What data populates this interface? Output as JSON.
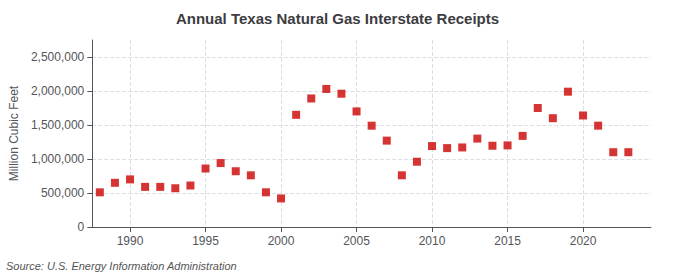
{
  "chart_data": {
    "type": "scatter",
    "title": "Annual Texas Natural Gas Interstate Receipts",
    "ylabel": "Million Cubic Feet",
    "annotations": [
      "Source: U.S. Energy Information Administration"
    ],
    "x": [
      1988,
      1989,
      1990,
      1991,
      1992,
      1993,
      1994,
      1995,
      1996,
      1997,
      1998,
      1999,
      2000,
      2001,
      2002,
      2003,
      2004,
      2005,
      2006,
      2007,
      2008,
      2009,
      2010,
      2011,
      2012,
      2013,
      2014,
      2015,
      2016,
      2017,
      2018,
      2019,
      2020,
      2021,
      2022,
      2023
    ],
    "values": [
      510000,
      650000,
      700000,
      590000,
      590000,
      570000,
      610000,
      860000,
      940000,
      820000,
      760000,
      510000,
      420000,
      1650000,
      1890000,
      2030000,
      1960000,
      1700000,
      1490000,
      1270000,
      760000,
      960000,
      1190000,
      1160000,
      1170000,
      1300000,
      1195000,
      1200000,
      1340000,
      1750000,
      1600000,
      1990000,
      1640000,
      1490000,
      1100000,
      1100000
    ],
    "color": "#cc0000",
    "marker": "square",
    "xlim": [
      1987.5,
      2024.5
    ],
    "ylim": [
      0,
      2750000
    ],
    "xticks": [
      1990,
      1995,
      2000,
      2005,
      2010,
      2015,
      2020
    ],
    "yticks": [
      0,
      {
        "value": 500000,
        "label": "500,000"
      },
      {
        "value": 1000000,
        "label": "1,000,000"
      },
      {
        "value": 1500000,
        "label": "1,500,000"
      },
      {
        "value": 2000000,
        "label": "2,000,000"
      },
      {
        "value": 2500000,
        "label": "2,500,000"
      }
    ],
    "grid": true
  }
}
